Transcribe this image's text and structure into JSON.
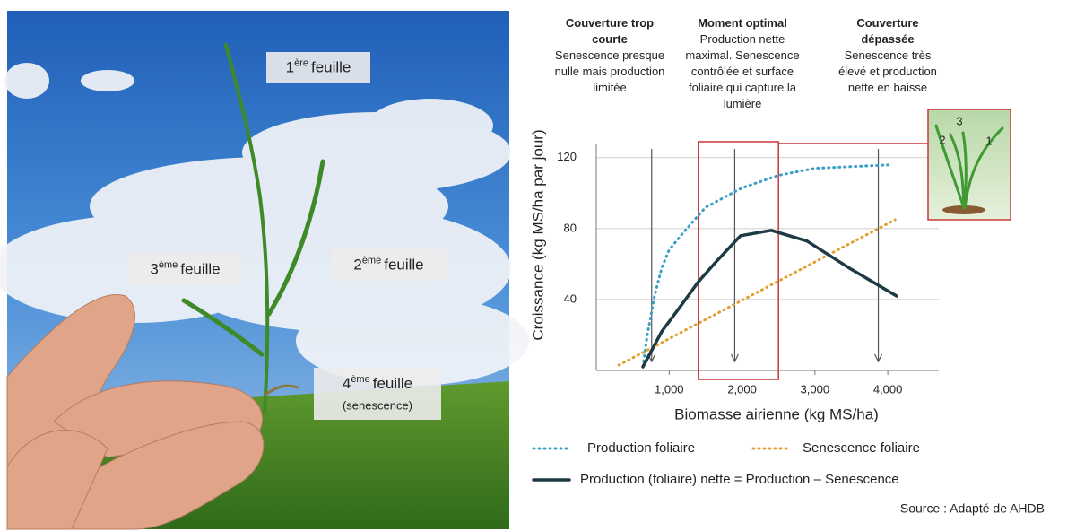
{
  "photo": {
    "labels": [
      {
        "number": "1",
        "sup": "ère",
        "text": "feuille"
      },
      {
        "number": "2",
        "sup": "ème",
        "text": "feuille"
      },
      {
        "number": "3",
        "sup": "ème",
        "text": "feuille"
      },
      {
        "number": "4",
        "sup": "ème",
        "text": "feuille",
        "note": "(senescence)"
      }
    ]
  },
  "columns": [
    {
      "title": "Couverture trop courte",
      "text": "Senescence presque nulle mais production limitée"
    },
    {
      "title": "Moment optimal",
      "text": "Production nette maximal. Senescence contrôlée et surface foliaire qui capture la lumière"
    },
    {
      "title": "Couverture dépassée",
      "text": "Senescence très élevé et production nette en baisse"
    }
  ],
  "inset": {
    "labels": [
      "1",
      "2",
      "3"
    ]
  },
  "chart_data": {
    "type": "line",
    "x_label": "Biomasse airienne (kg MS/ha)",
    "y_label": "Croissance (kg MS/ha par jour)",
    "xlim": [
      0,
      4700
    ],
    "ylim": [
      0,
      130
    ],
    "xticks": [
      {
        "value": 1000,
        "label": "1,000"
      },
      {
        "value": 2000,
        "label": "2,000"
      },
      {
        "value": 3000,
        "label": "3,000"
      },
      {
        "value": 4000,
        "label": "4,000"
      }
    ],
    "yticks": [
      40,
      80,
      120
    ],
    "grid": true,
    "arrows_x": [
      760,
      1900,
      3870
    ],
    "optimal_range": [
      1400,
      2500
    ],
    "series": [
      {
        "name": "Production foliaire",
        "color": "#3a9fc6",
        "style": "dotted",
        "x": [
          640,
          700,
          800,
          900,
          1000,
          1200,
          1500,
          2000,
          2500,
          3000,
          3500,
          4050
        ],
        "values": [
          2,
          20,
          42,
          58,
          68,
          78,
          92,
          103,
          110,
          114,
          115,
          116
        ]
      },
      {
        "name": "Senescence foliaire",
        "color": "#e0a030",
        "style": "dotted",
        "x": [
          310,
          4100
        ],
        "values": [
          3,
          85
        ]
      },
      {
        "name": "Production (foliaire) nette = Production – Senescence",
        "color": "#1d3a45",
        "style": "solid",
        "x": [
          640,
          900,
          1170,
          1400,
          1660,
          1980,
          2400,
          2890,
          3500,
          4120
        ],
        "values": [
          2,
          22,
          37,
          50,
          62,
          76,
          79,
          73,
          57,
          42
        ]
      }
    ],
    "source": "Source : Adapté de AHDB"
  }
}
